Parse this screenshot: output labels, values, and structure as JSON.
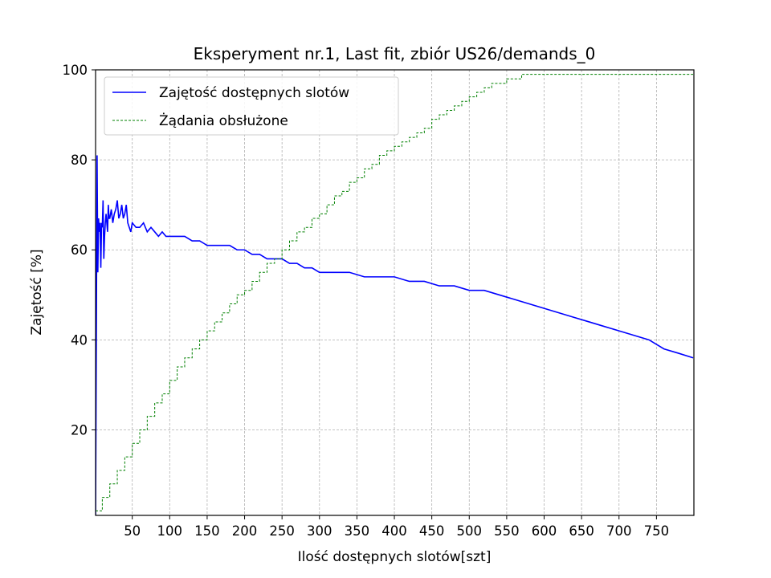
{
  "chart_data": {
    "type": "line",
    "title": "Eksperyment nr.1, Last fit, zbiór US26/demands_0",
    "xlabel": "Ilość dostępnych slotów[szt]",
    "ylabel": "Zajętość [%]",
    "xlim": [
      1,
      800
    ],
    "ylim": [
      1,
      100
    ],
    "xticks": [
      50,
      100,
      150,
      200,
      250,
      300,
      350,
      400,
      450,
      500,
      550,
      600,
      650,
      700,
      750
    ],
    "yticks": [
      20,
      40,
      60,
      80,
      100
    ],
    "grid": true,
    "legend_position": "top-left",
    "series": [
      {
        "name": "Zajętość dostępnych slotów",
        "color": "#0000ff",
        "style": "solid",
        "x": [
          1,
          2,
          3,
          4,
          5,
          6,
          7,
          8,
          9,
          10,
          11,
          12,
          13,
          14,
          15,
          16,
          17,
          18,
          19,
          20,
          22,
          24,
          26,
          28,
          30,
          32,
          34,
          36,
          38,
          40,
          42,
          44,
          46,
          48,
          50,
          55,
          60,
          65,
          70,
          75,
          80,
          85,
          90,
          95,
          100,
          110,
          120,
          130,
          140,
          150,
          160,
          170,
          180,
          190,
          200,
          210,
          220,
          230,
          240,
          250,
          260,
          270,
          280,
          290,
          300,
          320,
          340,
          360,
          380,
          400,
          420,
          440,
          460,
          480,
          500,
          520,
          540,
          560,
          580,
          600,
          620,
          640,
          660,
          680,
          700,
          720,
          740,
          760,
          780,
          799
        ],
        "y": [
          0,
          40,
          81,
          55,
          67,
          64,
          66,
          56,
          66,
          65,
          71,
          58,
          63,
          66,
          68,
          66,
          64,
          70,
          67,
          67,
          69,
          66,
          68,
          69,
          71,
          67,
          68,
          70,
          67,
          68,
          70,
          66,
          65,
          64,
          66,
          65,
          65,
          66,
          64,
          65,
          64,
          63,
          64,
          63,
          63,
          63,
          63,
          62,
          62,
          61,
          61,
          61,
          61,
          60,
          60,
          59,
          59,
          58,
          58,
          58,
          57,
          57,
          56,
          56,
          55,
          55,
          55,
          54,
          54,
          54,
          53,
          53,
          52,
          52,
          51,
          51,
          50,
          49,
          48,
          47,
          46,
          45,
          44,
          43,
          42,
          41,
          40,
          38,
          37,
          36
        ]
      },
      {
        "name": "Żądania obsłużone",
        "color": "#008000",
        "style": "dashed",
        "x": [
          1,
          10,
          20,
          30,
          40,
          50,
          60,
          70,
          80,
          90,
          100,
          110,
          120,
          130,
          140,
          150,
          160,
          170,
          180,
          190,
          200,
          210,
          220,
          230,
          240,
          250,
          260,
          270,
          280,
          290,
          300,
          310,
          320,
          330,
          340,
          350,
          360,
          370,
          380,
          390,
          400,
          410,
          420,
          430,
          440,
          450,
          460,
          470,
          480,
          490,
          500,
          510,
          520,
          530,
          540,
          550,
          560,
          570,
          580,
          590,
          600,
          610,
          620,
          630,
          640,
          650,
          660,
          680,
          700,
          720,
          740,
          760,
          780,
          799
        ],
        "y": [
          2,
          5,
          8,
          11,
          14,
          17,
          20,
          23,
          26,
          28,
          31,
          34,
          36,
          38,
          40,
          42,
          44,
          46,
          48,
          50,
          51,
          53,
          55,
          57,
          58,
          60,
          62,
          64,
          65,
          67,
          68,
          70,
          72,
          73,
          75,
          76,
          78,
          79,
          81,
          82,
          83,
          84,
          85,
          86,
          87,
          89,
          90,
          91,
          92,
          93,
          94,
          95,
          96,
          97,
          97,
          98,
          98,
          99,
          99,
          99,
          99,
          99,
          99,
          99,
          99,
          99,
          99,
          99,
          99,
          99,
          99,
          99,
          99,
          99
        ]
      }
    ]
  }
}
